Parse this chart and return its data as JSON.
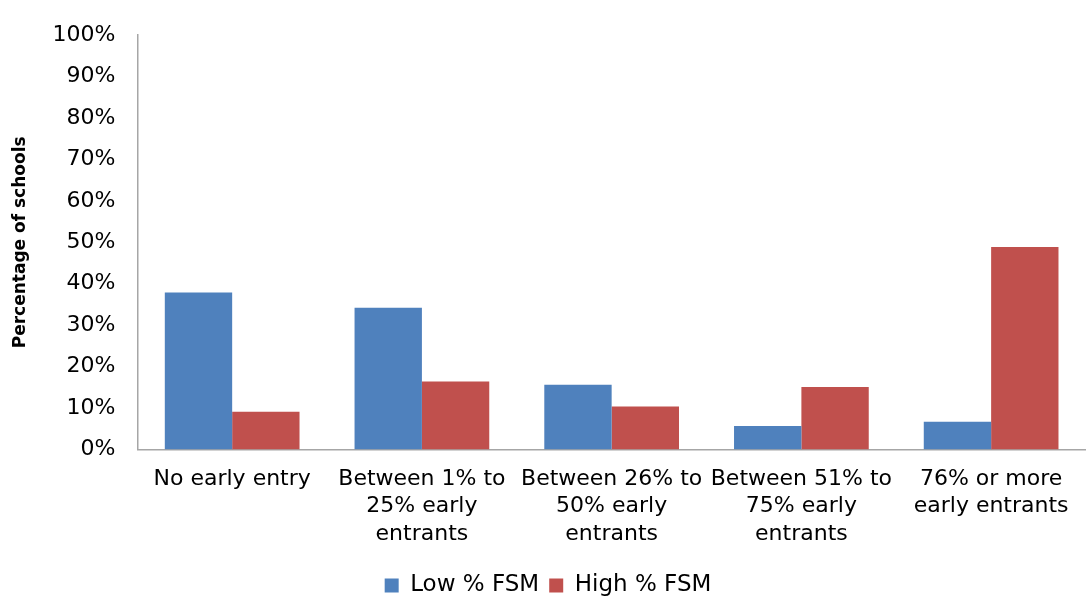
{
  "chart_data": {
    "type": "bar",
    "categories": [
      "No early entry",
      "Between 1% to 25% early entrants",
      "Between 26% to 50% early entrants",
      "Between 51% to 75% early entrants",
      "76% or more early entrants"
    ],
    "series": [
      {
        "name": "Low % FSM",
        "color": "#4f81bd",
        "values": [
          37.9,
          34.2,
          15.6,
          5.7,
          6.7
        ]
      },
      {
        "name": "High % FSM",
        "color": "#c0504d",
        "values": [
          9.1,
          16.4,
          10.4,
          15.1,
          48.9
        ]
      }
    ],
    "ylabel": "Percentage of schools",
    "ylim": [
      0,
      100
    ],
    "yticks": [
      {
        "value": 0,
        "label": "0%"
      },
      {
        "value": 10,
        "label": "10%"
      },
      {
        "value": 20,
        "label": "20%"
      },
      {
        "value": 30,
        "label": "30%"
      },
      {
        "value": 40,
        "label": "40%"
      },
      {
        "value": 50,
        "label": "50%"
      },
      {
        "value": 60,
        "label": "60%"
      },
      {
        "value": 70,
        "label": "70%"
      },
      {
        "value": 80,
        "label": "80%"
      },
      {
        "value": 90,
        "label": "90%"
      },
      {
        "value": 100,
        "label": "100%"
      }
    ],
    "grid": false,
    "legend": "bottom"
  }
}
